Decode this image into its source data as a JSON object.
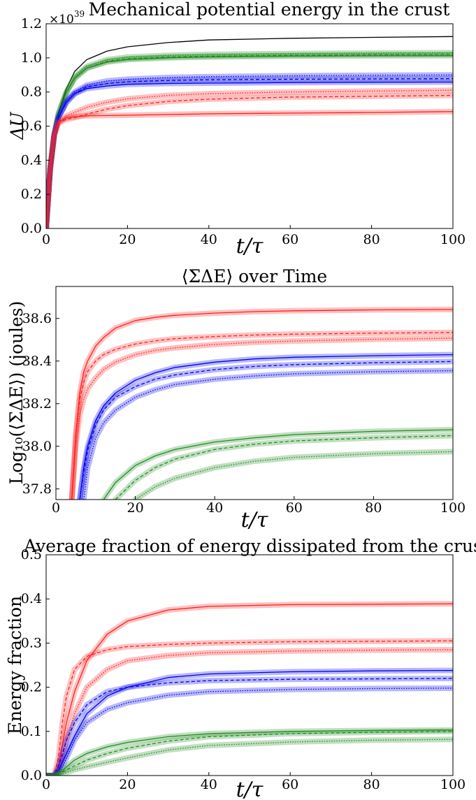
{
  "chart_data": [
    {
      "type": "line",
      "title": "Mechanical potential energy in the crust",
      "xlabel": "t/τ",
      "ylabel": "ΔU",
      "y_scale_label": "×10",
      "y_scale_exp": "39",
      "xlim": [
        0,
        100
      ],
      "ylim": [
        0,
        1.2
      ],
      "xticks": [
        "0",
        "20",
        "40",
        "60",
        "80",
        "100"
      ],
      "yticks": [
        "0.0",
        "0.2",
        "0.4",
        "0.6",
        "0.8",
        "1.0",
        "1.2"
      ],
      "x": [
        0,
        1,
        2,
        3,
        5,
        7,
        10,
        15,
        20,
        30,
        40,
        60,
        80,
        100
      ],
      "series": [
        {
          "color": "#000000",
          "style": "solid",
          "band": false,
          "values": [
            0,
            0.35,
            0.55,
            0.68,
            0.82,
            0.92,
            0.99,
            1.04,
            1.065,
            1.09,
            1.105,
            1.115,
            1.12,
            1.125
          ]
        },
        {
          "color": "#228b22",
          "style": "solid",
          "band": true,
          "values": [
            0,
            0.35,
            0.55,
            0.67,
            0.8,
            0.88,
            0.94,
            0.975,
            0.99,
            1.0,
            1.005,
            1.01,
            1.012,
            1.013
          ]
        },
        {
          "color": "#228b22",
          "style": "dashed",
          "band": true,
          "values": [
            0,
            0.35,
            0.55,
            0.67,
            0.8,
            0.88,
            0.94,
            0.98,
            0.995,
            1.005,
            1.01,
            1.015,
            1.018,
            1.02
          ]
        },
        {
          "color": "#228b22",
          "style": "dotted",
          "band": true,
          "values": [
            0,
            0.35,
            0.55,
            0.67,
            0.8,
            0.89,
            0.95,
            0.99,
            1.005,
            1.015,
            1.02,
            1.025,
            1.028,
            1.03
          ]
        },
        {
          "color": "#0000ee",
          "style": "solid",
          "band": true,
          "values": [
            0,
            0.35,
            0.55,
            0.65,
            0.74,
            0.79,
            0.82,
            0.835,
            0.845,
            0.85,
            0.852,
            0.855,
            0.857,
            0.858
          ]
        },
        {
          "color": "#0000ee",
          "style": "dashed",
          "band": true,
          "values": [
            0,
            0.35,
            0.55,
            0.65,
            0.74,
            0.79,
            0.83,
            0.85,
            0.86,
            0.868,
            0.872,
            0.875,
            0.877,
            0.878
          ]
        },
        {
          "color": "#0000ee",
          "style": "dotted",
          "band": true,
          "values": [
            0,
            0.35,
            0.55,
            0.65,
            0.75,
            0.8,
            0.84,
            0.865,
            0.875,
            0.885,
            0.89,
            0.895,
            0.898,
            0.9
          ]
        },
        {
          "color": "#ff2020",
          "style": "solid",
          "band": true,
          "values": [
            0,
            0.35,
            0.55,
            0.62,
            0.65,
            0.655,
            0.66,
            0.662,
            0.664,
            0.668,
            0.672,
            0.676,
            0.68,
            0.685
          ]
        },
        {
          "color": "#ff2020",
          "style": "dashed",
          "band": true,
          "values": [
            0,
            0.35,
            0.55,
            0.62,
            0.64,
            0.65,
            0.67,
            0.7,
            0.72,
            0.745,
            0.758,
            0.77,
            0.775,
            0.78
          ]
        },
        {
          "color": "#ff2020",
          "style": "dotted",
          "band": true,
          "values": [
            0,
            0.35,
            0.55,
            0.62,
            0.66,
            0.68,
            0.71,
            0.74,
            0.76,
            0.78,
            0.79,
            0.8,
            0.805,
            0.81
          ]
        }
      ]
    },
    {
      "type": "line",
      "title": "⟨ΣΔE⟩ over Time",
      "xlabel": "t/τ",
      "ylabel": "Log₁₀(⟨ΣΔE⟩) (joules)",
      "xlim": [
        0,
        100
      ],
      "ylim": [
        37.75,
        38.75
      ],
      "xticks": [
        "0",
        "20",
        "40",
        "60",
        "80",
        "100"
      ],
      "yticks": [
        "37.8",
        "38.0",
        "38.2",
        "38.4",
        "38.6"
      ],
      "x": [
        4,
        5,
        6,
        7,
        8,
        10,
        12,
        15,
        20,
        25,
        30,
        40,
        50,
        60,
        80,
        100
      ],
      "series": [
        {
          "color": "#ff2020",
          "style": "solid",
          "band": true,
          "values": [
            37.75,
            38.05,
            38.25,
            38.35,
            38.4,
            38.47,
            38.51,
            38.555,
            38.59,
            38.605,
            38.615,
            38.625,
            38.632,
            38.636,
            38.64,
            38.642
          ]
        },
        {
          "color": "#ff2020",
          "style": "dashed",
          "band": true,
          "values": [
            37.75,
            38.05,
            38.22,
            38.3,
            38.35,
            38.4,
            38.43,
            38.455,
            38.48,
            38.495,
            38.505,
            38.515,
            38.522,
            38.526,
            38.531,
            38.534
          ]
        },
        {
          "color": "#ff2020",
          "style": "dotted",
          "band": true,
          "values": [
            37.75,
            38.0,
            38.15,
            38.22,
            38.27,
            38.32,
            38.36,
            38.395,
            38.43,
            38.45,
            38.462,
            38.478,
            38.488,
            38.494,
            38.502,
            38.507
          ]
        },
        {
          "color": "#0000ee",
          "style": "solid",
          "band": true,
          "values": [
            null,
            null,
            37.75,
            37.9,
            38.0,
            38.12,
            38.19,
            38.25,
            38.31,
            38.345,
            38.37,
            38.395,
            38.41,
            38.418,
            38.425,
            38.43
          ]
        },
        {
          "color": "#0000ee",
          "style": "dashed",
          "band": true,
          "values": [
            null,
            null,
            37.75,
            37.88,
            37.98,
            38.1,
            38.17,
            38.23,
            38.28,
            38.315,
            38.335,
            38.36,
            38.375,
            38.383,
            38.392,
            38.398
          ]
        },
        {
          "color": "#0000ee",
          "style": "dotted",
          "band": true,
          "values": [
            null,
            null,
            null,
            37.75,
            37.9,
            38.04,
            38.11,
            38.17,
            38.23,
            38.265,
            38.29,
            38.315,
            38.33,
            38.34,
            38.35,
            38.355
          ]
        },
        {
          "color": "#228b22",
          "style": "solid",
          "band": true,
          "values": [
            null,
            null,
            null,
            null,
            null,
            null,
            37.75,
            37.83,
            37.91,
            37.955,
            37.985,
            38.02,
            38.04,
            38.055,
            38.07,
            38.078
          ]
        },
        {
          "color": "#228b22",
          "style": "dashed",
          "band": true,
          "values": [
            null,
            null,
            null,
            null,
            null,
            null,
            null,
            37.75,
            37.84,
            37.9,
            37.94,
            37.985,
            38.01,
            38.025,
            38.04,
            38.05
          ]
        },
        {
          "color": "#228b22",
          "style": "dotted",
          "band": true,
          "values": [
            null,
            null,
            null,
            null,
            null,
            null,
            null,
            null,
            37.75,
            37.81,
            37.85,
            37.9,
            37.93,
            37.948,
            37.965,
            37.975
          ]
        }
      ]
    },
    {
      "type": "line",
      "title": "Average fraction of energy dissipated from the crust",
      "xlabel": "t/τ",
      "ylabel": "Energy fraction",
      "xlim": [
        0,
        100
      ],
      "ylim": [
        0,
        0.5
      ],
      "xticks": [
        "0",
        "20",
        "40",
        "60",
        "80",
        "100"
      ],
      "yticks": [
        "0.0",
        "0.1",
        "0.2",
        "0.3",
        "0.4",
        "0.5"
      ],
      "x": [
        0,
        2,
        3,
        4,
        5,
        7,
        10,
        15,
        20,
        30,
        40,
        60,
        80,
        100
      ],
      "series": [
        {
          "color": "#ff2020",
          "style": "solid",
          "band": true,
          "values": [
            0,
            0,
            0.02,
            0.07,
            0.12,
            0.19,
            0.26,
            0.32,
            0.35,
            0.375,
            0.383,
            0.387,
            0.388,
            0.389
          ]
        },
        {
          "color": "#ff2020",
          "style": "dashed",
          "band": true,
          "values": [
            0,
            0,
            0.04,
            0.12,
            0.18,
            0.24,
            0.27,
            0.285,
            0.292,
            0.297,
            0.3,
            0.303,
            0.304,
            0.305
          ]
        },
        {
          "color": "#ff2020",
          "style": "dotted",
          "band": true,
          "values": [
            0,
            0,
            0.01,
            0.04,
            0.08,
            0.14,
            0.2,
            0.24,
            0.26,
            0.272,
            0.278,
            0.282,
            0.284,
            0.285
          ]
        },
        {
          "color": "#0000ee",
          "style": "solid",
          "band": true,
          "values": [
            0,
            0,
            0.01,
            0.03,
            0.05,
            0.09,
            0.14,
            0.18,
            0.2,
            0.222,
            0.23,
            0.235,
            0.237,
            0.238
          ]
        },
        {
          "color": "#0000ee",
          "style": "dashed",
          "band": true,
          "values": [
            0,
            0,
            0.02,
            0.05,
            0.08,
            0.12,
            0.16,
            0.19,
            0.2,
            0.21,
            0.215,
            0.218,
            0.219,
            0.22
          ]
        },
        {
          "color": "#0000ee",
          "style": "dotted",
          "band": true,
          "values": [
            0,
            0,
            0.005,
            0.02,
            0.04,
            0.08,
            0.12,
            0.15,
            0.165,
            0.182,
            0.19,
            0.195,
            0.197,
            0.198
          ]
        },
        {
          "color": "#228b22",
          "style": "solid",
          "band": true,
          "values": [
            0,
            0,
            0.005,
            0.01,
            0.02,
            0.035,
            0.05,
            0.065,
            0.075,
            0.088,
            0.095,
            0.1,
            0.102,
            0.103
          ]
        },
        {
          "color": "#228b22",
          "style": "dashed",
          "band": true,
          "values": [
            0,
            0,
            0.003,
            0.008,
            0.013,
            0.022,
            0.035,
            0.05,
            0.062,
            0.078,
            0.088,
            0.095,
            0.098,
            0.1
          ]
        },
        {
          "color": "#228b22",
          "style": "dotted",
          "band": true,
          "values": [
            0,
            0,
            0.002,
            0.004,
            0.007,
            0.013,
            0.02,
            0.03,
            0.04,
            0.058,
            0.068,
            0.076,
            0.08,
            0.082
          ]
        }
      ]
    }
  ]
}
